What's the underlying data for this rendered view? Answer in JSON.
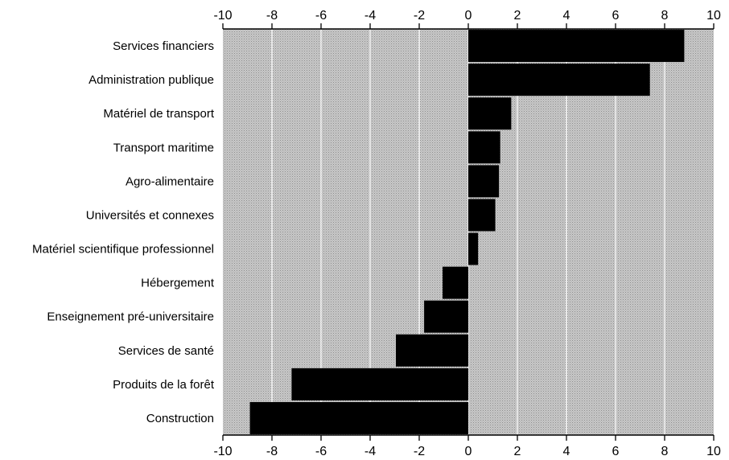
{
  "chart_data": {
    "type": "bar",
    "orientation": "horizontal",
    "categories": [
      "Services financiers",
      "Administration publique",
      "Matériel de transport",
      "Transport maritime",
      "Agro-alimentaire",
      "Universités et connexes",
      "Matériel scientifique professionnel",
      "Hébergement",
      "Enseignement pré-universitaire",
      "Services de santé",
      "Produits de la forêt",
      "Construction"
    ],
    "values": [
      8.8,
      7.4,
      1.75,
      1.3,
      1.25,
      1.1,
      0.4,
      -1.05,
      -1.8,
      -2.95,
      -7.2,
      -8.9
    ],
    "xlim": [
      -10,
      10
    ],
    "xticks": [
      -10,
      -8,
      -6,
      -4,
      -2,
      0,
      2,
      4,
      6,
      8,
      10
    ],
    "x_axis_position": "top and bottom",
    "grid": true,
    "bar_color": "#000000",
    "plot_background": "#bdbdbd"
  }
}
